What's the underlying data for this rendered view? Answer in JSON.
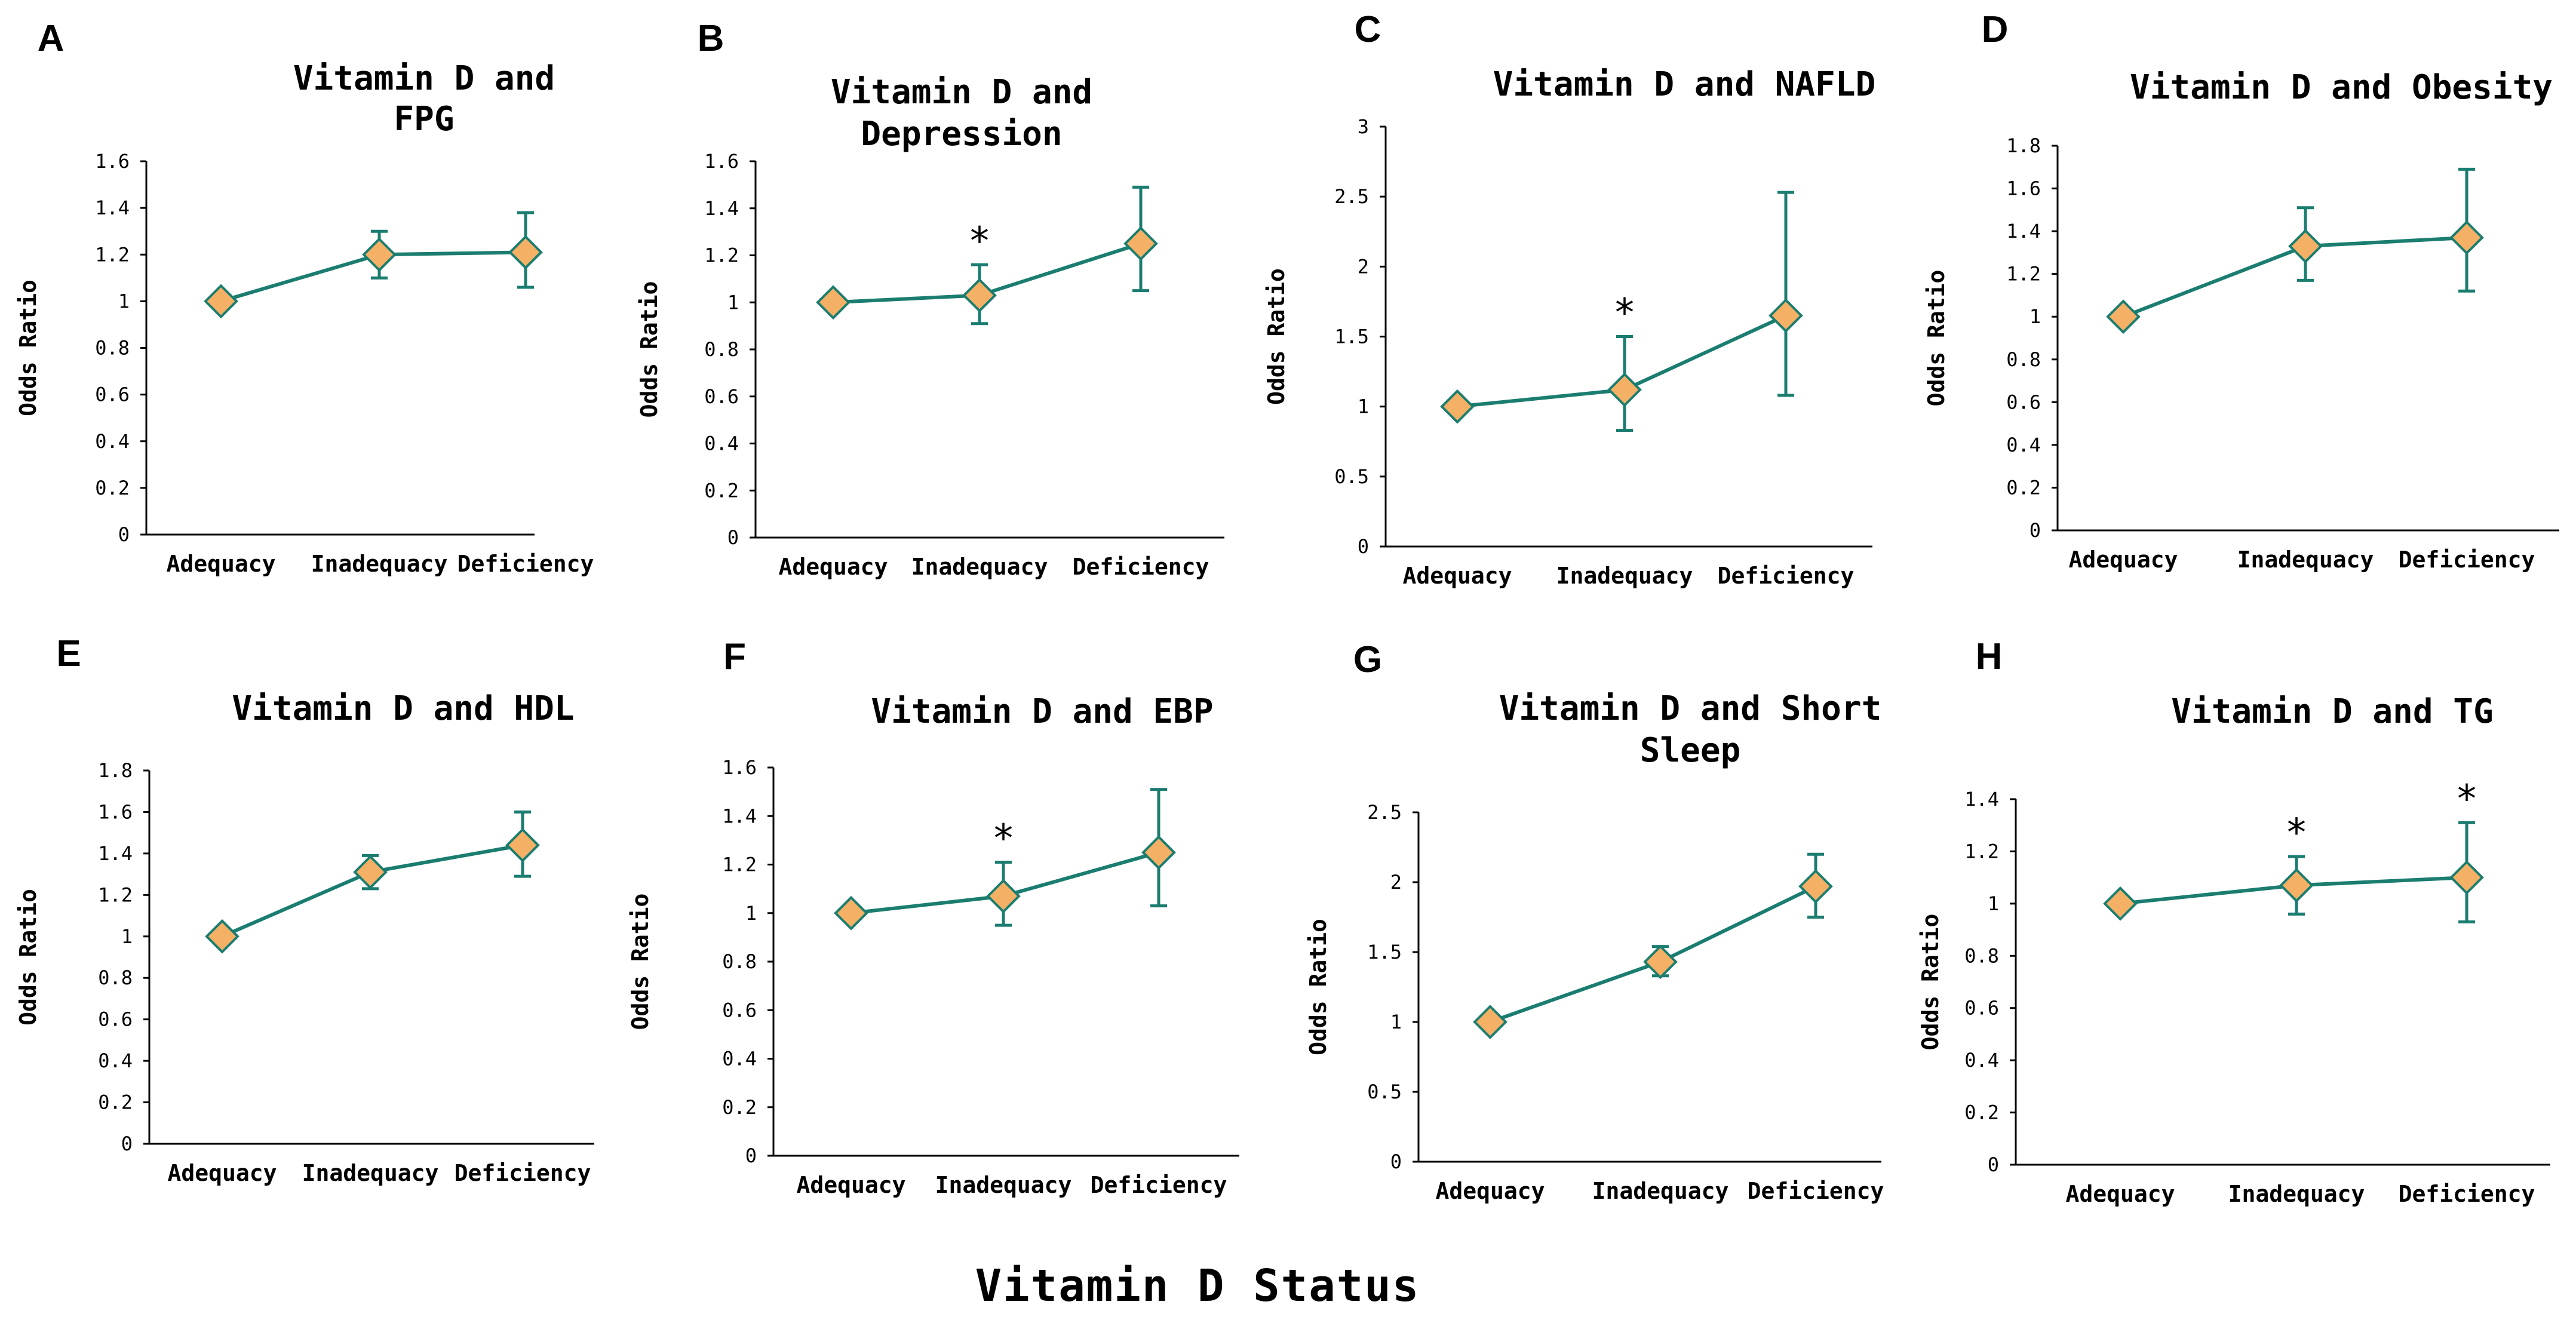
{
  "figure": {
    "xlabel": "Vitamin D Status",
    "colors": {
      "line": "#1a7d70",
      "marker_fill": "#f4b064",
      "marker_stroke": "#1a7d70",
      "axis": "#000000"
    }
  },
  "chart_data": [
    {
      "panel": "A",
      "type": "line",
      "title": [
        "Vitamin D and",
        "FPG"
      ],
      "ylabel": "Odds Ratio",
      "categories": [
        "Adequacy",
        "Inadequacy",
        "Deficiency"
      ],
      "values": [
        1.0,
        1.2,
        1.21
      ],
      "err_low": [
        1.0,
        1.1,
        1.06
      ],
      "err_high": [
        1.0,
        1.3,
        1.38
      ],
      "significant": [
        false,
        false,
        false
      ],
      "ylim": [
        0,
        1.6
      ],
      "yticks": [
        "0",
        "0.2",
        "0.4",
        "0.6",
        "0.8",
        "1",
        "1.2",
        "1.4",
        "1.6"
      ]
    },
    {
      "panel": "B",
      "type": "line",
      "title": [
        "Vitamin D and",
        "Depression"
      ],
      "ylabel": "Odds Ratio",
      "categories": [
        "Adequacy",
        "Inadequacy",
        "Deficiency"
      ],
      "values": [
        1.0,
        1.03,
        1.25
      ],
      "err_low": [
        1.0,
        0.91,
        1.05
      ],
      "err_high": [
        1.0,
        1.16,
        1.49
      ],
      "significant": [
        false,
        true,
        false
      ],
      "ylim": [
        0,
        1.6
      ],
      "yticks": [
        "0",
        "0.2",
        "0.4",
        "0.6",
        "0.8",
        "1",
        "1.2",
        "1.4",
        "1.6"
      ]
    },
    {
      "panel": "C",
      "type": "line",
      "title": [
        "Vitamin D and NAFLD"
      ],
      "ylabel": "Odds Ratio",
      "categories": [
        "Adequacy",
        "Inadequacy",
        "Deficiency"
      ],
      "values": [
        1.0,
        1.12,
        1.65
      ],
      "err_low": [
        1.0,
        0.83,
        1.08
      ],
      "err_high": [
        1.0,
        1.5,
        2.53
      ],
      "significant": [
        false,
        true,
        false
      ],
      "ylim": [
        0,
        3
      ],
      "yticks": [
        "0",
        "0.5",
        "1",
        "1.5",
        "2",
        "2.5",
        "3"
      ]
    },
    {
      "panel": "D",
      "type": "line",
      "title": [
        "Vitamin D and Obesity"
      ],
      "ylabel": "Odds Ratio",
      "categories": [
        "Adequacy",
        "Inadequacy",
        "Deficiency"
      ],
      "values": [
        1.0,
        1.33,
        1.37
      ],
      "err_low": [
        1.0,
        1.17,
        1.12
      ],
      "err_high": [
        1.0,
        1.51,
        1.69
      ],
      "significant": [
        false,
        false,
        false
      ],
      "ylim": [
        0,
        1.8
      ],
      "yticks": [
        "0",
        "0.2",
        "0.4",
        "0.6",
        "0.8",
        "1",
        "1.2",
        "1.4",
        "1.6",
        "1.8"
      ]
    },
    {
      "panel": "E",
      "type": "line",
      "title": [
        "Vitamin D and HDL"
      ],
      "ylabel": "Odds Ratio",
      "categories": [
        "Adequacy",
        "Inadequacy",
        "Deficiency"
      ],
      "values": [
        1.0,
        1.31,
        1.44
      ],
      "err_low": [
        1.0,
        1.23,
        1.29
      ],
      "err_high": [
        1.0,
        1.39,
        1.6
      ],
      "significant": [
        false,
        false,
        false
      ],
      "ylim": [
        0,
        1.8
      ],
      "yticks": [
        "0",
        "0.2",
        "0.4",
        "0.6",
        "0.8",
        "1",
        "1.2",
        "1.4",
        "1.6",
        "1.8"
      ]
    },
    {
      "panel": "F",
      "type": "line",
      "title": [
        "Vitamin D and EBP"
      ],
      "ylabel": "Odds Ratio",
      "categories": [
        "Adequacy",
        "Inadequacy",
        "Deficiency"
      ],
      "values": [
        1.0,
        1.07,
        1.25
      ],
      "err_low": [
        1.0,
        0.95,
        1.03
      ],
      "err_high": [
        1.0,
        1.21,
        1.51
      ],
      "significant": [
        false,
        true,
        false
      ],
      "ylim": [
        0,
        1.6
      ],
      "yticks": [
        "0",
        "0.2",
        "0.4",
        "0.6",
        "0.8",
        "1",
        "1.2",
        "1.4",
        "1.6"
      ]
    },
    {
      "panel": "G",
      "type": "line",
      "title": [
        "Vitamin D and Short",
        "Sleep"
      ],
      "ylabel": "Odds Ratio",
      "categories": [
        "Adequacy",
        "Inadequacy",
        "Deficiency"
      ],
      "values": [
        1.0,
        1.43,
        1.97
      ],
      "err_low": [
        1.0,
        1.33,
        1.75
      ],
      "err_high": [
        1.0,
        1.54,
        2.2
      ],
      "significant": [
        false,
        false,
        false
      ],
      "ylim": [
        0,
        2.5
      ],
      "yticks": [
        "0",
        "0.5",
        "1",
        "1.5",
        "2",
        "2.5"
      ]
    },
    {
      "panel": "H",
      "type": "line",
      "title": [
        "Vitamin D and TG"
      ],
      "ylabel": "Odds Ratio",
      "categories": [
        "Adequacy",
        "Inadequacy",
        "Deficiency"
      ],
      "values": [
        1.0,
        1.07,
        1.1
      ],
      "err_low": [
        1.0,
        0.96,
        0.93
      ],
      "err_high": [
        1.0,
        1.18,
        1.31
      ],
      "significant": [
        false,
        true,
        true
      ],
      "ylim": [
        0,
        1.4
      ],
      "yticks": [
        "0",
        "0.2",
        "0.4",
        "0.6",
        "0.8",
        "1",
        "1.2",
        "1.4"
      ]
    }
  ]
}
